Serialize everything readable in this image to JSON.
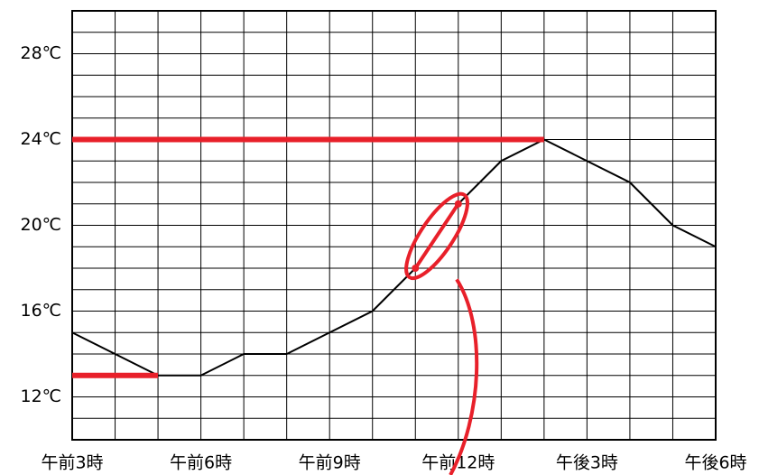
{
  "chart_data": {
    "type": "line",
    "categories": [
      "午前3時",
      null,
      null,
      "午前6時",
      null,
      null,
      "午前9時",
      null,
      null,
      "午前12時",
      null,
      null,
      "午後3時",
      null,
      null,
      "午後6時"
    ],
    "values": [
      15,
      14,
      13,
      13,
      14,
      14,
      15,
      16,
      18,
      21,
      23,
      24,
      23,
      22,
      20,
      19
    ],
    "color": "#000000",
    "ylim": [
      10,
      30
    ],
    "yticks": [
      {
        "value": 12,
        "label": "12℃"
      },
      {
        "value": 16,
        "label": "16℃"
      },
      {
        "value": 20,
        "label": "20℃"
      },
      {
        "value": 24,
        "label": "24℃"
      },
      {
        "value": 28,
        "label": "28℃"
      }
    ],
    "yminorticks": [
      10,
      11,
      12,
      13,
      14,
      15,
      16,
      17,
      18,
      19,
      20,
      21,
      22,
      23,
      24,
      25,
      26,
      27,
      28,
      29,
      30
    ],
    "grid": true,
    "highlight_color": "#e8202a"
  }
}
